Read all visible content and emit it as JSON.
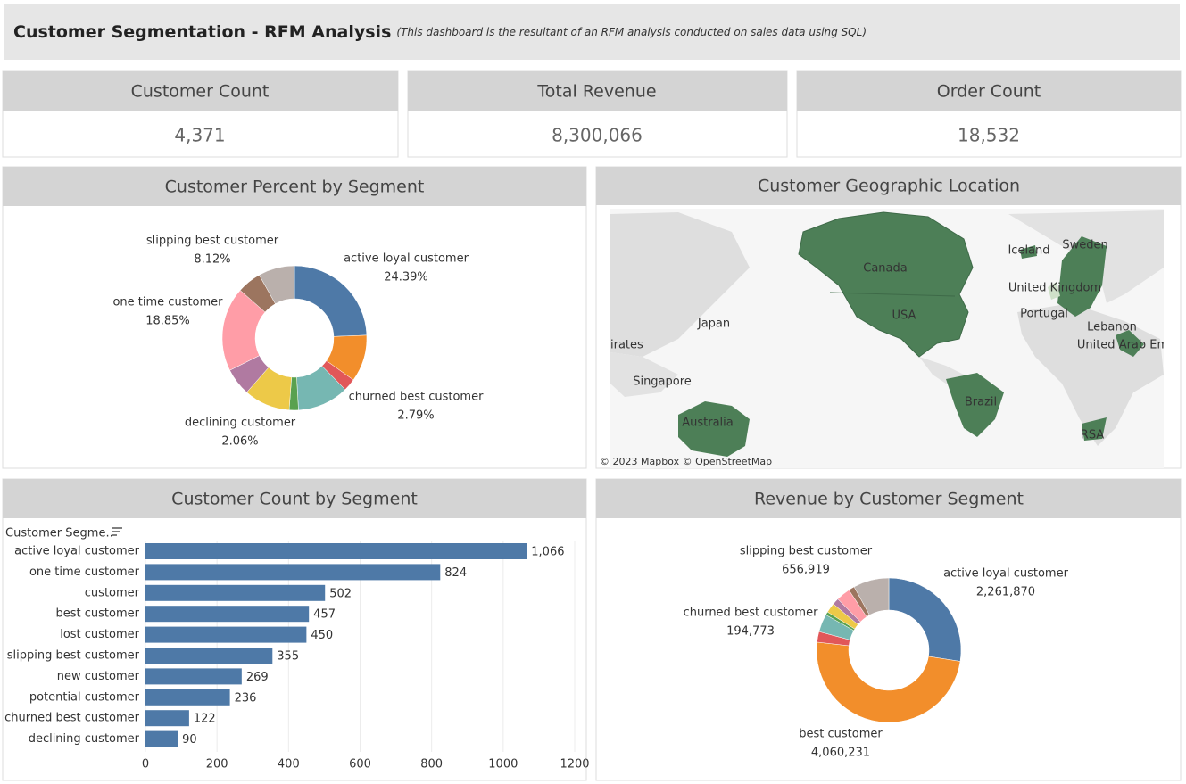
{
  "header": {
    "title": "Customer Segmentation - RFM Analysis",
    "subtitle": "(This dashboard is the resultant of an RFM analysis conducted on sales data using SQL)"
  },
  "kpis": [
    {
      "title": "Customer Count",
      "value": "4,371"
    },
    {
      "title": "Total Revenue",
      "value": "8,300,066"
    },
    {
      "title": "Order Count",
      "value": "18,532"
    }
  ],
  "chart_data": [
    {
      "type": "pie",
      "title": "Customer Percent by Segment",
      "donut": true,
      "categories": [
        "active loyal customer",
        null,
        "churned best customer",
        null,
        "declining customer",
        null,
        null,
        "one time customer",
        null,
        "slipping best customer"
      ],
      "values": [
        24.39,
        10.46,
        2.79,
        11.48,
        2.06,
        10.3,
        6.15,
        18.85,
        5.4,
        8.12
      ],
      "value_labels": [
        "24.39%",
        null,
        "2.79%",
        null,
        "2.06%",
        null,
        null,
        "18.85%",
        null,
        "8.12%"
      ],
      "colors": [
        "#4e79a7",
        "#f28e2b",
        "#e15759",
        "#76b7b2",
        "#59a14f",
        "#edc948",
        "#b07aa1",
        "#ff9da7",
        "#9c755f",
        "#bab0ac"
      ]
    },
    {
      "type": "bar",
      "title": "Customer Count by Segment",
      "orientation": "horizontal",
      "y_label": "Customer Segme..",
      "categories": [
        "active loyal customer",
        "one time customer",
        "customer",
        "best customer",
        "lost customer",
        "slipping best customer",
        "new customer",
        "potential customer",
        "churned best customer",
        "declining customer"
      ],
      "values": [
        1066,
        824,
        502,
        457,
        450,
        355,
        269,
        236,
        122,
        90
      ],
      "value_labels": [
        "1,066",
        "824",
        "502",
        "457",
        "450",
        "355",
        "269",
        "236",
        "122",
        "90"
      ],
      "color": "#4e79a7",
      "xlim": [
        0,
        1200
      ],
      "xticks": [
        0,
        200,
        400,
        600,
        800,
        1000,
        1200
      ],
      "grid": true
    },
    {
      "type": "pie",
      "title": "Revenue by Customer Segment",
      "donut": true,
      "categories": [
        "active loyal customer",
        "best customer",
        "churned best customer",
        null,
        null,
        null,
        null,
        null,
        null,
        "slipping best customer"
      ],
      "values": [
        2261870,
        4060231,
        194773,
        330000,
        60000,
        180000,
        120000,
        260000,
        110000,
        656919
      ],
      "value_labels": [
        "2,261,870",
        "4,060,231",
        "194,773",
        null,
        null,
        null,
        null,
        null,
        null,
        "656,919"
      ],
      "colors": [
        "#4e79a7",
        "#f28e2b",
        "#e15759",
        "#76b7b2",
        "#59a14f",
        "#edc948",
        "#b07aa1",
        "#ff9da7",
        "#9c755f",
        "#bab0ac"
      ]
    }
  ],
  "map": {
    "title": "Customer Geographic Location",
    "labels": [
      "irates",
      "Canada",
      "USA",
      "Iceland",
      "Sweden",
      "United Kingdom",
      "Portugal",
      "Lebanon",
      "United Arab Em",
      "Japan",
      "Singapore",
      "Australia",
      "Brazil",
      "RSA"
    ],
    "attribution": "© 2023 Mapbox © OpenStreetMap"
  }
}
